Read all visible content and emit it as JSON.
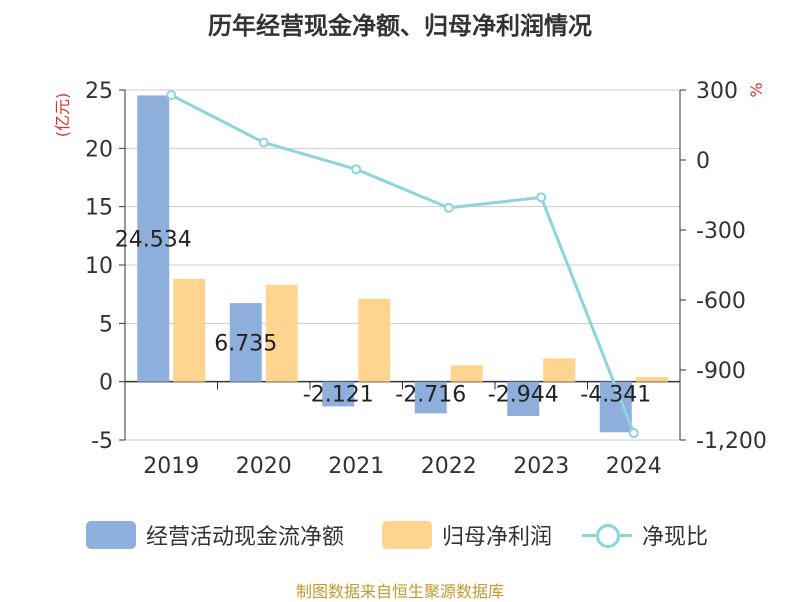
{
  "colors": {
    "cash_flow": "#8eaedb",
    "net_profit": "#fed48f",
    "ratio": "#8ed4dc",
    "axis_unit": "#e03030",
    "source": "#c49a2c"
  },
  "legend": {
    "cash_flow": "经营活动现金流净额",
    "net_profit": "归母净利润",
    "ratio": "净现比"
  },
  "source_text": "制图数据来自恒生聚源数据库",
  "chart_data": {
    "type": "bar",
    "title": "历年经营现金净额、归母净利润情况",
    "categories": [
      "2019",
      "2020",
      "2021",
      "2022",
      "2023",
      "2024"
    ],
    "series": [
      {
        "name": "经营活动现金流净额",
        "type": "bar",
        "axis": "left",
        "values": [
          24.534,
          6.735,
          -2.121,
          -2.716,
          -2.944,
          -4.341
        ],
        "labels": [
          "24.534",
          "6.735",
          "-2.121",
          "-2.716",
          "-2.944",
          "-4.341"
        ]
      },
      {
        "name": "归母净利润",
        "type": "bar",
        "axis": "left",
        "values": [
          8.8,
          8.3,
          7.1,
          1.4,
          2.0,
          0.4
        ]
      },
      {
        "name": "净现比",
        "type": "line",
        "axis": "right",
        "values": [
          278,
          75,
          -40,
          -205,
          -160,
          -1170
        ]
      }
    ],
    "ylabel": "(亿元)",
    "ylim": [
      -5,
      25
    ],
    "yticks": [
      -5,
      0,
      5,
      10,
      15,
      20,
      25
    ],
    "y2label": "%",
    "y2lim": [
      -1200,
      300
    ],
    "y2ticks": [
      -1200,
      -900,
      -600,
      -300,
      0,
      300
    ],
    "y2ticklabels": [
      "-1,200",
      "-900",
      "-600",
      "-300",
      "0",
      "300"
    ],
    "grid": true,
    "legend_position": "bottom"
  }
}
